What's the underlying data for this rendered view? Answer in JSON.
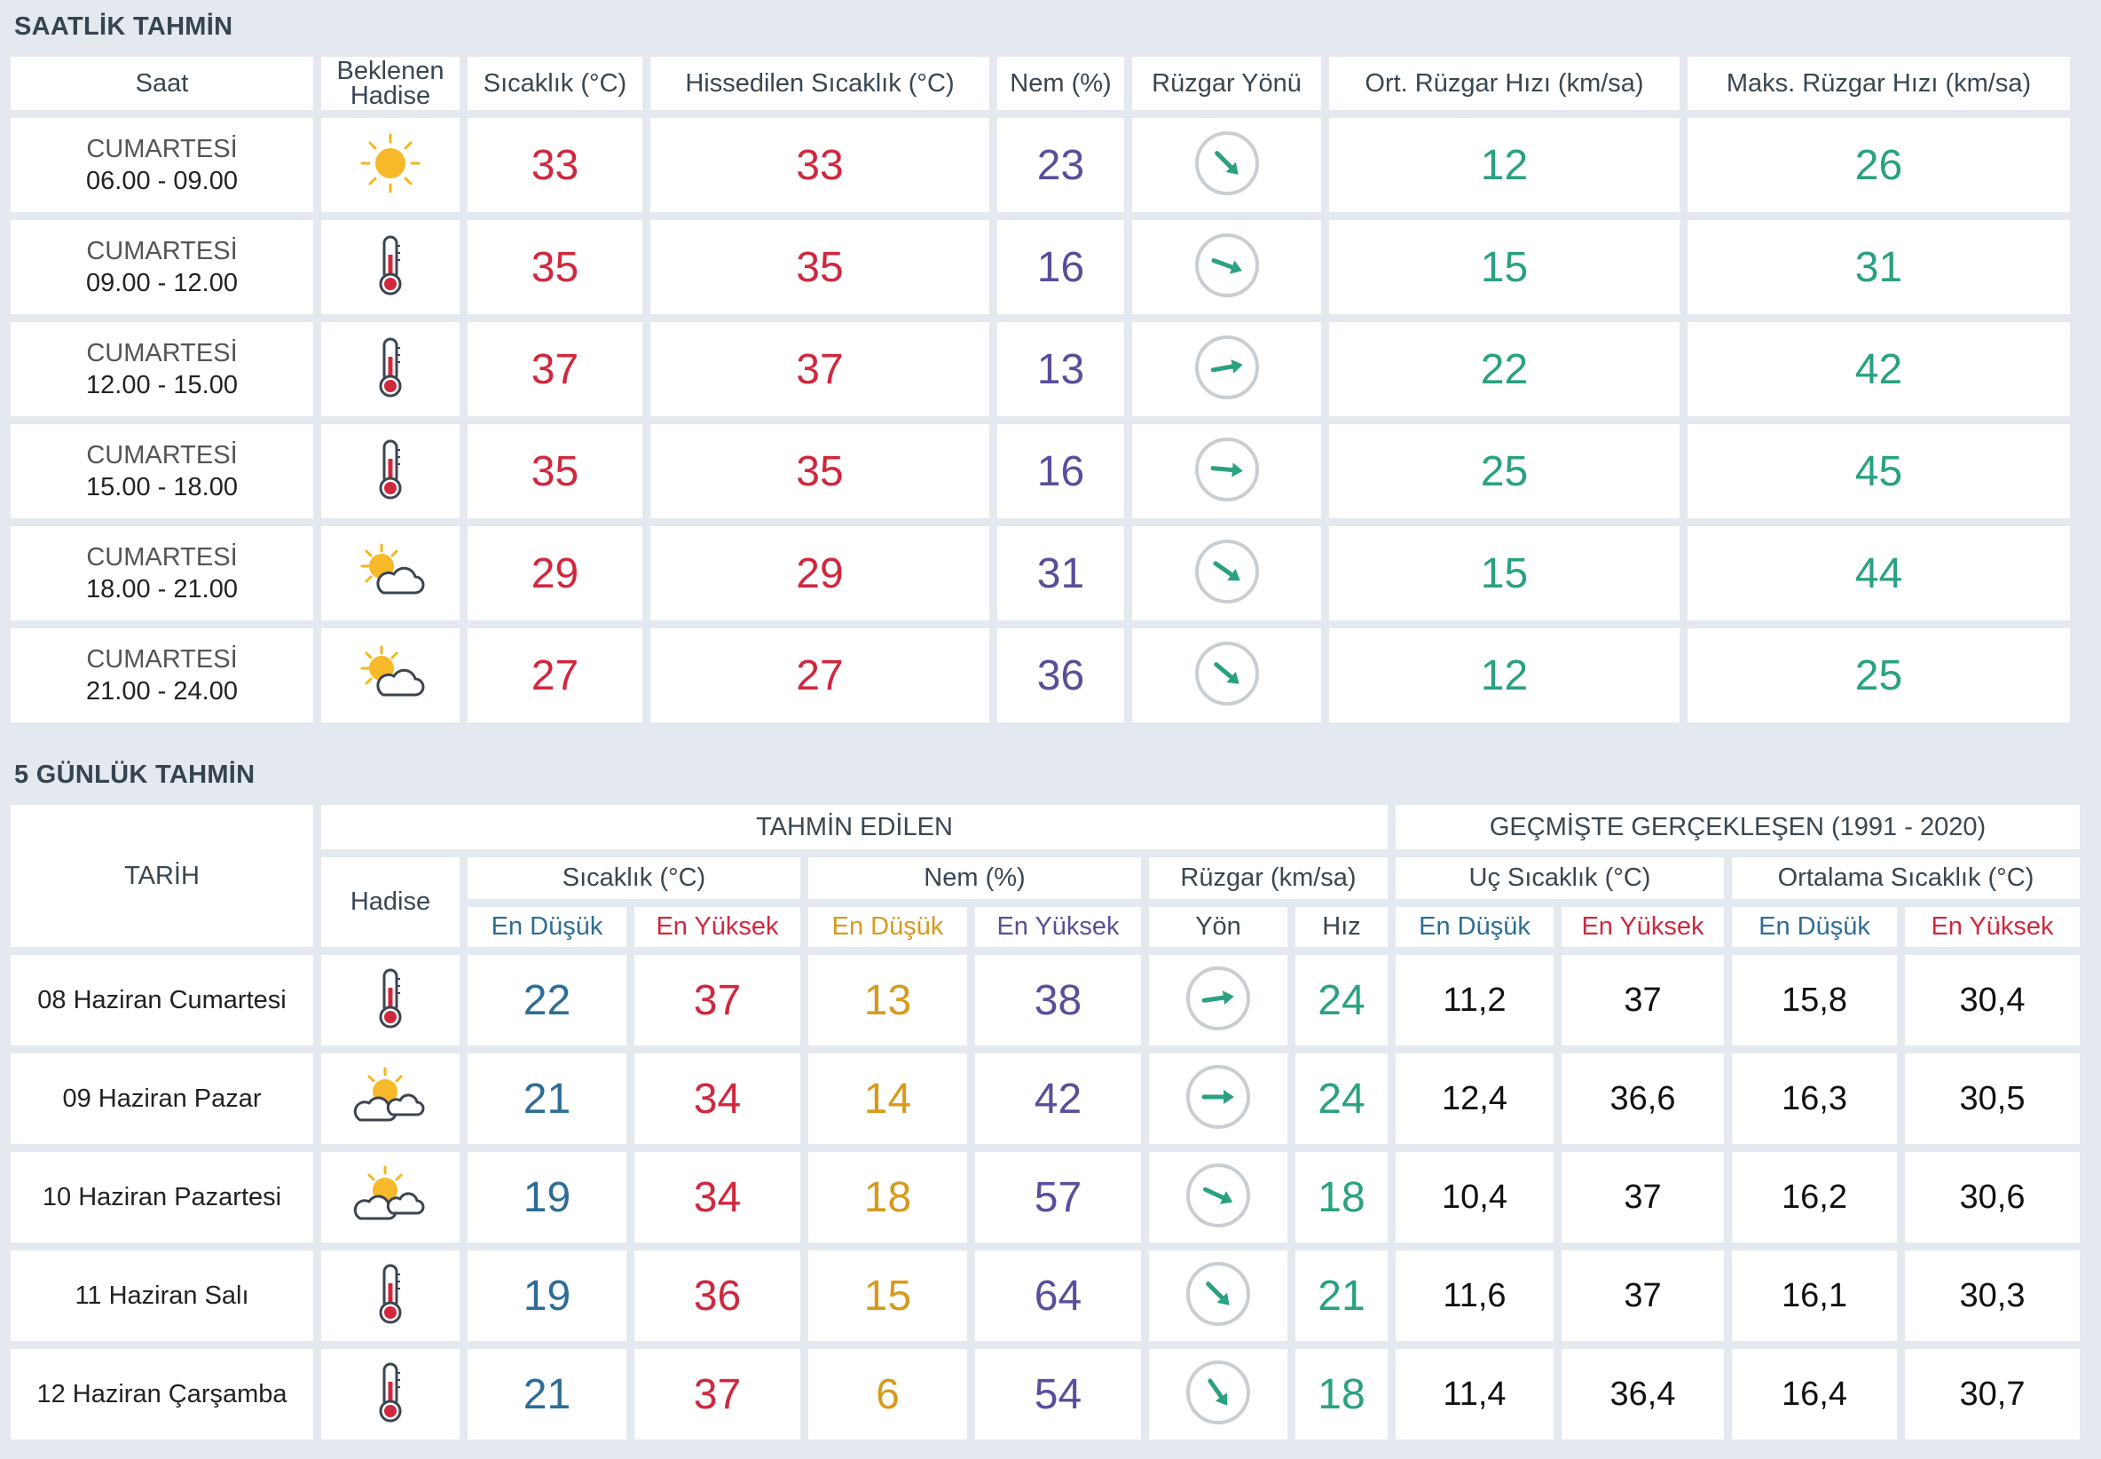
{
  "hourly": {
    "title": "SAATLİK TAHMİN",
    "headers": {
      "saat": "Saat",
      "hadise": "Beklenen Hadise",
      "sicaklik": "Sıcaklık (°C)",
      "hissedilen": "Hissedilen Sıcaklık (°C)",
      "nem": "Nem (%)",
      "ruzgar_yonu": "Rüzgar Yönü",
      "ort_hiz": "Ort. Rüzgar Hızı (km/sa)",
      "maks_hiz": "Maks. Rüzgar Hızı (km/sa)"
    },
    "rows": [
      {
        "day": "CUMARTESİ",
        "time": "06.00 - 09.00",
        "icon": "sun-icon",
        "temp": "33",
        "feels": "33",
        "humidity": "23",
        "wind_dir_deg": 45,
        "wind_avg": "12",
        "wind_max": "26"
      },
      {
        "day": "CUMARTESİ",
        "time": "09.00 - 12.00",
        "icon": "thermometer-icon",
        "temp": "35",
        "feels": "35",
        "humidity": "16",
        "wind_dir_deg": 20,
        "wind_avg": "15",
        "wind_max": "31"
      },
      {
        "day": "CUMARTESİ",
        "time": "12.00 - 15.00",
        "icon": "thermometer-icon",
        "temp": "37",
        "feels": "37",
        "humidity": "13",
        "wind_dir_deg": -10,
        "wind_avg": "22",
        "wind_max": "42"
      },
      {
        "day": "CUMARTESİ",
        "time": "15.00 - 18.00",
        "icon": "thermometer-icon",
        "temp": "35",
        "feels": "35",
        "humidity": "16",
        "wind_dir_deg": 5,
        "wind_avg": "25",
        "wind_max": "45"
      },
      {
        "day": "CUMARTESİ",
        "time": "18.00 - 21.00",
        "icon": "sun-cloud-icon",
        "temp": "29",
        "feels": "29",
        "humidity": "31",
        "wind_dir_deg": 35,
        "wind_avg": "15",
        "wind_max": "44"
      },
      {
        "day": "CUMARTESİ",
        "time": "21.00 - 24.00",
        "icon": "sun-cloud-icon",
        "temp": "27",
        "feels": "27",
        "humidity": "36",
        "wind_dir_deg": 40,
        "wind_avg": "12",
        "wind_max": "25"
      }
    ]
  },
  "daily": {
    "title": "5 GÜNLÜK TAHMİN",
    "headers": {
      "tarih": "TARİH",
      "tahmin": "TAHMİN EDİLEN",
      "gecmis": "GEÇMİŞTE GERÇEKLEŞEN (1991 - 2020)",
      "hadise": "Hadise",
      "sicaklik": "Sıcaklık (°C)",
      "nem": "Nem (%)",
      "ruzgar": "Rüzgar (km/sa)",
      "uc": "Uç Sıcaklık (°C)",
      "ortalama": "Ortalama Sıcaklık (°C)",
      "en_dusuk": "En Düşük",
      "en_yuksek": "En Yüksek",
      "yon": "Yön",
      "hiz": "Hız"
    },
    "rows": [
      {
        "date": "08 Haziran Cumartesi",
        "icon": "thermometer-icon",
        "t_min": "22",
        "t_max": "37",
        "h_min": "13",
        "h_max": "38",
        "wind_dir_deg": -8,
        "wind_speed": "24",
        "uc_min": "11,2",
        "uc_max": "37",
        "ort_min": "15,8",
        "ort_max": "30,4"
      },
      {
        "date": "09 Haziran Pazar",
        "icon": "sun-clouds-icon",
        "t_min": "21",
        "t_max": "34",
        "h_min": "14",
        "h_max": "42",
        "wind_dir_deg": 0,
        "wind_speed": "24",
        "uc_min": "12,4",
        "uc_max": "36,6",
        "ort_min": "16,3",
        "ort_max": "30,5"
      },
      {
        "date": "10 Haziran Pazartesi",
        "icon": "sun-clouds-icon",
        "t_min": "19",
        "t_max": "34",
        "h_min": "18",
        "h_max": "57",
        "wind_dir_deg": 25,
        "wind_speed": "18",
        "uc_min": "10,4",
        "uc_max": "37",
        "ort_min": "16,2",
        "ort_max": "30,6"
      },
      {
        "date": "11 Haziran Salı",
        "icon": "thermometer-icon",
        "t_min": "19",
        "t_max": "36",
        "h_min": "15",
        "h_max": "64",
        "wind_dir_deg": 45,
        "wind_speed": "21",
        "uc_min": "11,6",
        "uc_max": "37",
        "ort_min": "16,1",
        "ort_max": "30,3"
      },
      {
        "date": "12 Haziran Çarşamba",
        "icon": "thermometer-icon",
        "t_min": "21",
        "t_max": "37",
        "h_min": "6",
        "h_max": "54",
        "wind_dir_deg": 55,
        "wind_speed": "18",
        "uc_min": "11,4",
        "uc_max": "36,4",
        "ort_min": "16,4",
        "ort_max": "30,7"
      }
    ]
  },
  "colors": {
    "temperature": "#d0283e",
    "humidity": "#5a4e9a",
    "wind": "#2aa181",
    "low": "#2d6d96",
    "humidity_low": "#d69a1d"
  }
}
